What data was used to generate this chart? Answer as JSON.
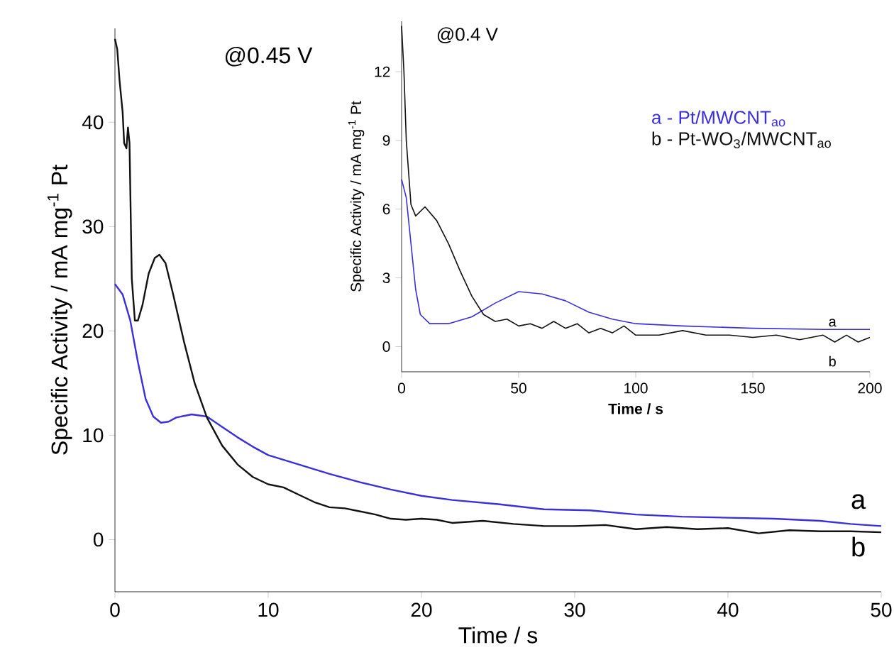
{
  "chart_data": [
    {
      "type": "line",
      "xlabel": "Time / s",
      "ylabel": "Specific Activity / mA mg$^{-1}$ Pt",
      "xlim": [
        0,
        50
      ],
      "ylim": [
        -5,
        49
      ],
      "xticks": [
        0,
        10,
        20,
        30,
        40,
        50
      ],
      "yticks": [
        0,
        10,
        20,
        30,
        40
      ],
      "grid": false,
      "legend": false,
      "annotations": [
        "@0.45 V",
        "a",
        "b"
      ],
      "series": [
        {
          "color": "#3b2fd8",
          "x": [
            0,
            0.5,
            1,
            1.5,
            2,
            2.5,
            3,
            3.5,
            4,
            5,
            6,
            7,
            8,
            9,
            10,
            12,
            14,
            16,
            18,
            20,
            22,
            25,
            28,
            31,
            34,
            37,
            40,
            43,
            46,
            48,
            50
          ],
          "values": [
            24.5,
            23.5,
            21,
            17,
            13.5,
            11.8,
            11.2,
            11.3,
            11.7,
            12,
            11.8,
            10.8,
            9.8,
            8.9,
            8.1,
            7.2,
            6.3,
            5.5,
            4.8,
            4.2,
            3.8,
            3.4,
            2.9,
            2.8,
            2.4,
            2.2,
            2.1,
            2.0,
            1.8,
            1.5,
            1.3
          ]
        },
        {
          "color": "#111111",
          "x": [
            0,
            0.15,
            0.3,
            0.5,
            0.6,
            0.75,
            0.85,
            0.95,
            1.1,
            1.3,
            1.5,
            1.8,
            2.2,
            2.6,
            2.9,
            3.3,
            3.8,
            4.5,
            5.2,
            6,
            7,
            8,
            9,
            10,
            11,
            12,
            13,
            14,
            15,
            16,
            17,
            18,
            19,
            20,
            21,
            22,
            24,
            26,
            28,
            30,
            32,
            34,
            36,
            38,
            40,
            42,
            44,
            46,
            48,
            50
          ],
          "values": [
            48,
            47,
            44,
            41,
            38,
            37.5,
            39.5,
            38,
            25,
            21,
            21,
            22.5,
            25.5,
            27,
            27.3,
            26.5,
            23.5,
            19,
            15,
            11.7,
            9,
            7.2,
            6,
            5.3,
            5,
            4.3,
            3.6,
            3.1,
            3.0,
            2.7,
            2.4,
            2.0,
            1.9,
            2.0,
            1.9,
            1.6,
            1.8,
            1.5,
            1.3,
            1.3,
            1.4,
            1.0,
            1.2,
            1.0,
            1.1,
            0.6,
            0.9,
            0.8,
            0.8,
            0.7
          ]
        }
      ]
    },
    {
      "type": "line",
      "xlabel": "Time / s",
      "ylabel": "Specific Activity / mA mg$^{-1}$ Pt",
      "xlim": [
        0,
        200
      ],
      "ylim": [
        -1.1,
        14.2
      ],
      "xticks": [
        0,
        50,
        100,
        150,
        200
      ],
      "yticks": [
        0,
        3,
        6,
        9,
        12
      ],
      "grid": false,
      "legend": "top right",
      "annotations": [
        "@0.4 V",
        "a",
        "b"
      ],
      "series": [
        {
          "name": "a - Pt/MWCNT$_{ao}$",
          "color": "#3b2fd8",
          "x": [
            0,
            2,
            4,
            6,
            8,
            12,
            20,
            30,
            40,
            50,
            60,
            70,
            80,
            90,
            100,
            120,
            150,
            180,
            200
          ],
          "values": [
            7.3,
            6.5,
            4.5,
            2.5,
            1.4,
            1.0,
            1.0,
            1.3,
            1.9,
            2.4,
            2.3,
            2.0,
            1.5,
            1.2,
            1.0,
            0.9,
            0.8,
            0.75,
            0.75
          ]
        },
        {
          "name": "b - Pt-WO$_{3}$/MWCNT$_{ao}$",
          "color": "#111111",
          "x": [
            0,
            1,
            2,
            4,
            6,
            10,
            15,
            20,
            25,
            30,
            35,
            40,
            45,
            50,
            55,
            60,
            65,
            70,
            75,
            80,
            85,
            90,
            95,
            100,
            110,
            120,
            130,
            140,
            150,
            160,
            170,
            180,
            185,
            190,
            195,
            200
          ],
          "values": [
            14,
            12,
            9,
            6.2,
            5.7,
            6.1,
            5.5,
            4.5,
            3.3,
            2.2,
            1.4,
            1.1,
            1.2,
            0.9,
            1.0,
            0.8,
            1.1,
            0.8,
            1.0,
            0.6,
            0.8,
            0.6,
            0.9,
            0.5,
            0.5,
            0.7,
            0.5,
            0.5,
            0.4,
            0.5,
            0.3,
            0.5,
            0.2,
            0.5,
            0.2,
            0.4
          ]
        }
      ]
    }
  ]
}
